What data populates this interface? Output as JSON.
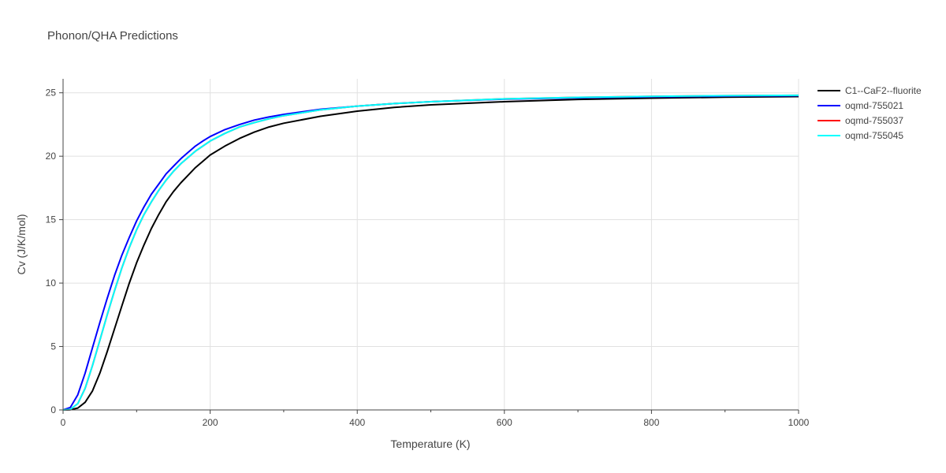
{
  "chart_data": {
    "type": "line",
    "title": "Phonon/QHA Predictions",
    "xlabel": "Temperature (K)",
    "ylabel": "Cv (J/K/mol)",
    "xlim": [
      0,
      1000
    ],
    "ylim": [
      0,
      26.1
    ],
    "xticks": [
      "0",
      "200",
      "400",
      "600",
      "800",
      "1000"
    ],
    "yticks": [
      "0",
      "5",
      "10",
      "15",
      "20",
      "25"
    ],
    "grid": true,
    "legend_position": "top-right",
    "series": [
      {
        "name": "C1--CaF2--fluorite",
        "color": "#000000",
        "x": [
          0,
          10,
          20,
          30,
          40,
          50,
          60,
          70,
          80,
          90,
          100,
          110,
          120,
          130,
          140,
          150,
          160,
          170,
          180,
          190,
          200,
          220,
          240,
          260,
          280,
          300,
          350,
          400,
          450,
          500,
          600,
          700,
          800,
          900,
          1000
        ],
        "y": [
          0,
          0.02,
          0.15,
          0.6,
          1.5,
          2.9,
          4.6,
          6.4,
          8.2,
          10.0,
          11.6,
          13.0,
          14.3,
          15.4,
          16.4,
          17.2,
          17.9,
          18.5,
          19.1,
          19.6,
          20.1,
          20.8,
          21.4,
          21.9,
          22.3,
          22.6,
          23.15,
          23.55,
          23.85,
          24.05,
          24.3,
          24.48,
          24.58,
          24.65,
          24.7
        ]
      },
      {
        "name": "oqmd-755021",
        "color": "#0000ff",
        "x": [
          0,
          10,
          20,
          30,
          40,
          50,
          60,
          70,
          80,
          90,
          100,
          110,
          120,
          130,
          140,
          150,
          160,
          170,
          180,
          190,
          200,
          220,
          240,
          260,
          280,
          300,
          350,
          400,
          450,
          500,
          600,
          700,
          800,
          900,
          1000
        ],
        "y": [
          0,
          0.2,
          1.2,
          2.9,
          4.9,
          6.9,
          8.8,
          10.6,
          12.2,
          13.6,
          14.9,
          16.0,
          17.0,
          17.8,
          18.6,
          19.2,
          19.8,
          20.3,
          20.8,
          21.2,
          21.55,
          22.1,
          22.5,
          22.85,
          23.1,
          23.3,
          23.7,
          23.95,
          24.15,
          24.3,
          24.5,
          24.6,
          24.68,
          24.73,
          24.77
        ]
      },
      {
        "name": "oqmd-755037",
        "color": "#ff0000",
        "x": [
          0,
          10,
          20,
          30,
          40,
          50,
          60,
          70,
          80,
          90,
          100,
          110,
          120,
          130,
          140,
          150,
          160,
          170,
          180,
          190,
          200,
          220,
          240,
          260,
          280,
          300,
          350,
          400,
          450,
          500,
          600,
          700,
          800,
          900,
          1000
        ],
        "y": [
          0,
          0.05,
          0.5,
          1.7,
          3.5,
          5.5,
          7.5,
          9.4,
          11.2,
          12.8,
          14.2,
          15.4,
          16.4,
          17.3,
          18.1,
          18.8,
          19.4,
          19.9,
          20.4,
          20.8,
          21.2,
          21.8,
          22.3,
          22.65,
          22.95,
          23.2,
          23.65,
          23.95,
          24.15,
          24.3,
          24.52,
          24.64,
          24.72,
          24.77,
          24.8
        ]
      },
      {
        "name": "oqmd-755045",
        "color": "#00ffff",
        "x": [
          0,
          10,
          20,
          30,
          40,
          50,
          60,
          70,
          80,
          90,
          100,
          110,
          120,
          130,
          140,
          150,
          160,
          170,
          180,
          190,
          200,
          220,
          240,
          260,
          280,
          300,
          350,
          400,
          450,
          500,
          600,
          700,
          800,
          900,
          1000
        ],
        "y": [
          0,
          0.05,
          0.5,
          1.7,
          3.5,
          5.5,
          7.5,
          9.4,
          11.2,
          12.8,
          14.2,
          15.4,
          16.4,
          17.3,
          18.1,
          18.8,
          19.4,
          19.9,
          20.4,
          20.8,
          21.2,
          21.8,
          22.3,
          22.65,
          22.95,
          23.2,
          23.65,
          23.95,
          24.15,
          24.3,
          24.52,
          24.64,
          24.72,
          24.77,
          24.8
        ]
      }
    ]
  }
}
